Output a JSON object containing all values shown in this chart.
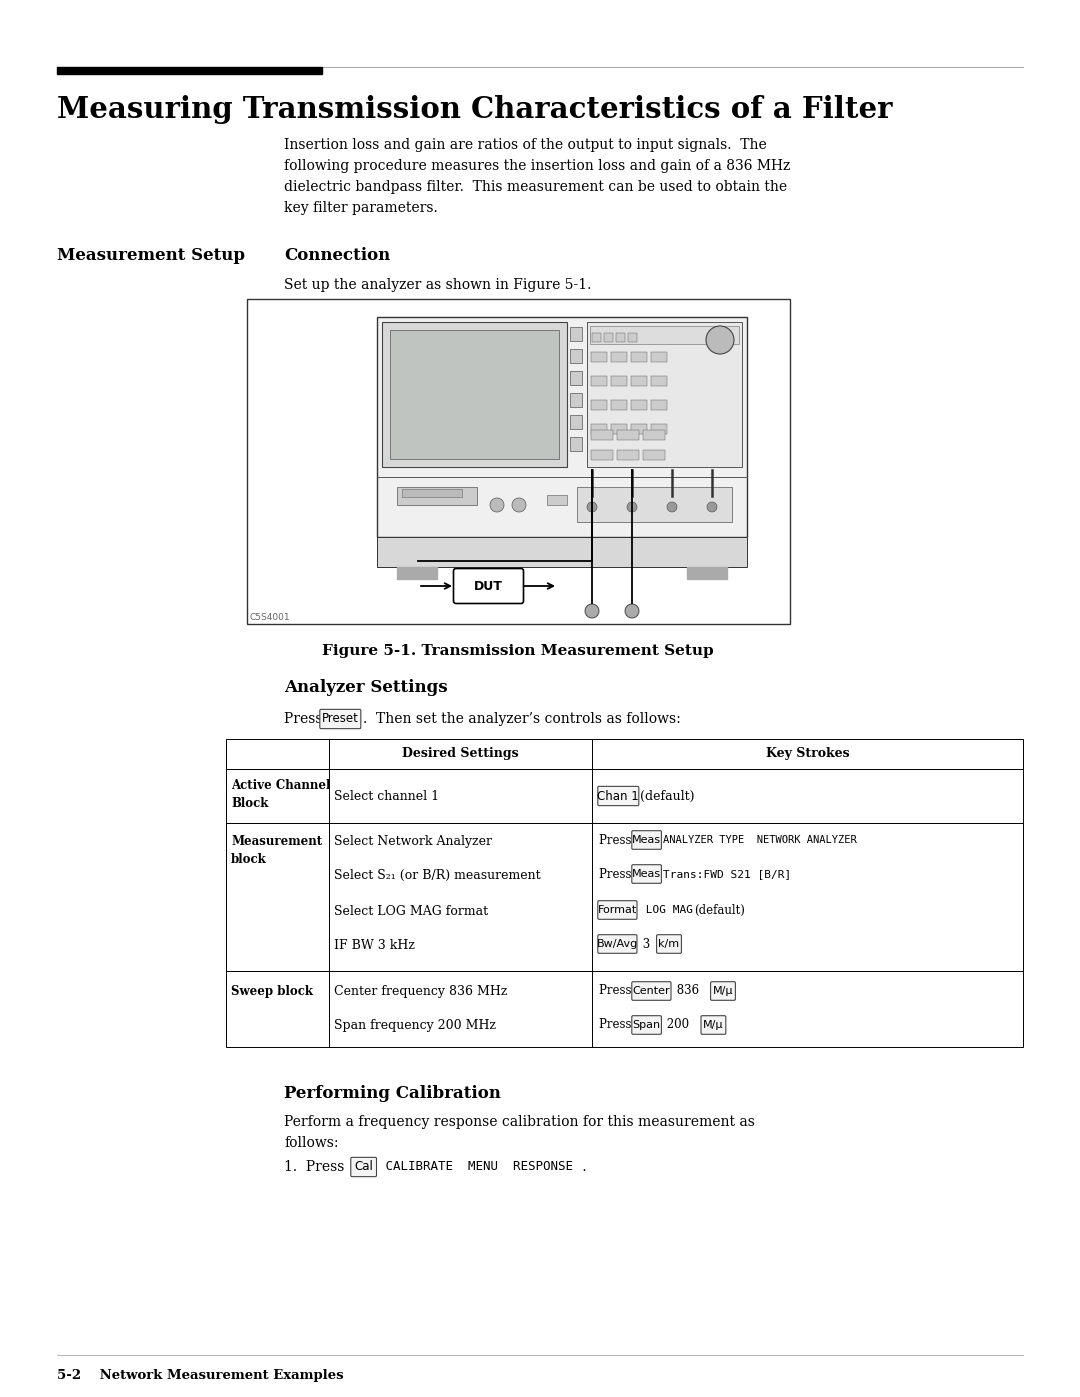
{
  "title": "Measuring Transmission Characteristics of a Filter",
  "section_label": "Measurement Setup",
  "intro_text": "Insertion loss and gain are ratios of the output to input signals.  The\nfollowing procedure measures the insertion loss and gain of a 836 MHz\ndielectric bandpass filter.  This measurement can be used to obtain the\nkey filter parameters.",
  "connection_title": "Connection",
  "connection_text": "Set up the analyzer as shown in Figure 5-1.",
  "figure_caption": "Figure 5-1. Transmission Measurement Setup",
  "figure_label": "C5S4001",
  "analyzer_settings_title": "Analyzer Settings",
  "preset_key": "Preset",
  "analyzer_settings_text2": ".  Then set the analyzer’s controls as follows:",
  "table_col2_header": "Desired Settings",
  "table_col3_header": "Key Strokes",
  "performing_cal_title": "Performing Calibration",
  "performing_cal_text": "Perform a frequency response calibration for this measurement as\nfollows:",
  "cal_key": "Cal",
  "cal_mono": " CALIBRATE  MENU  RESPONSE",
  "cal_period": " .",
  "footer": "5-2    Network Measurement Examples",
  "bg_color": "#ffffff",
  "text_color": "#000000"
}
